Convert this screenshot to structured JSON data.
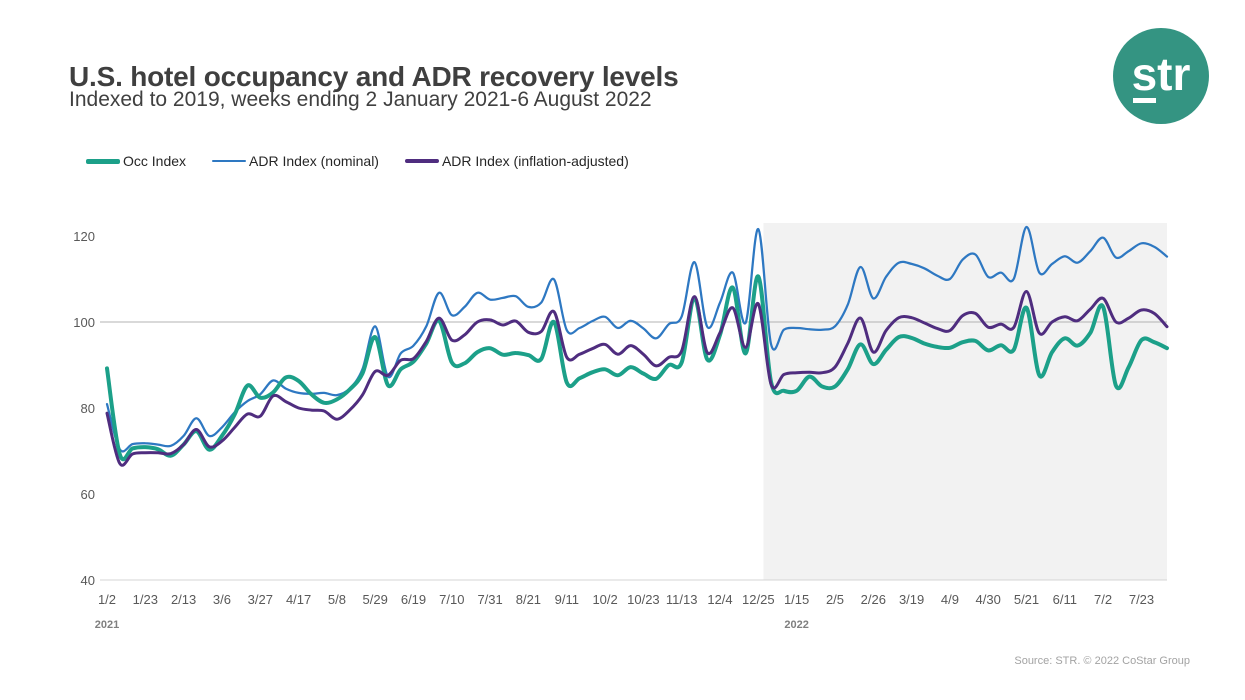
{
  "header": {
    "title": "U.S. hotel occupancy and ADR recovery levels",
    "subtitle": "Indexed to 2019, weeks ending 2 January 2021-6 August 2022"
  },
  "logo": {
    "text": "str",
    "color": "#349482"
  },
  "legend": {
    "items": [
      {
        "label": "Occ Index",
        "color": "#1CA089",
        "thickness": 5
      },
      {
        "label": "ADR Index (nominal)",
        "color": "#2E78C2",
        "thickness": 2.5
      },
      {
        "label": "ADR Index (inflation-adjusted)",
        "color": "#4F2D7F",
        "thickness": 3.5
      }
    ]
  },
  "axis": {
    "years": [
      "2021",
      "2022"
    ]
  },
  "source": "Source: STR. © 2022 CoStar Group",
  "chart_data": {
    "type": "line",
    "title": "U.S. hotel occupancy and ADR recovery levels",
    "subtitle": "Indexed to 2019, weeks ending 2 January 2021-6 August 2022",
    "x_unit": "week ending",
    "x_labels": [
      "1/2",
      "1/23",
      "2/13",
      "3/6",
      "3/27",
      "4/17",
      "5/8",
      "5/29",
      "6/19",
      "7/10",
      "7/31",
      "8/21",
      "9/11",
      "10/2",
      "10/23",
      "11/13",
      "12/4",
      "12/25",
      "1/15",
      "2/5",
      "2/26",
      "3/19",
      "4/9",
      "4/30",
      "5/21",
      "6/11",
      "7/2",
      "7/23"
    ],
    "label_every_n_weeks": 3,
    "n_points": 84,
    "y_ticks": [
      120,
      100,
      80,
      60,
      40
    ],
    "ylim": [
      40,
      125
    ],
    "reference_line": 100,
    "grid": "reference line at 100 only",
    "legend_position": "top-left",
    "shaded_region": {
      "from_index": 51.4,
      "to_index": 83,
      "color": "#f2f2f2",
      "meaning": "2022 weeks"
    },
    "series": [
      {
        "name": "Occ Index",
        "color": "#1CA089",
        "width": 4,
        "values": [
          89.2,
          69.2,
          70.6,
          70.9,
          70.4,
          68.9,
          71.5,
          74.6,
          70.3,
          73.5,
          78.5,
          85.2,
          82.4,
          83.6,
          87.1,
          86.3,
          83.2,
          81.2,
          82.0,
          84.3,
          88.0,
          96.5,
          85.3,
          89.0,
          90.8,
          95.0,
          100.3,
          90.6,
          90.4,
          93.0,
          93.9,
          92.4,
          92.8,
          92.3,
          91.4,
          100.0,
          85.9,
          86.9,
          88.3,
          89.0,
          87.6,
          89.5,
          88.0,
          86.8,
          90.0,
          90.6,
          105.5,
          91.3,
          97.0,
          108.0,
          92.7,
          110.6,
          86.0,
          84.0,
          84.0,
          87.3,
          85.0,
          85.0,
          89.0,
          94.8,
          90.2,
          93.5,
          96.5,
          96.3,
          95.0,
          94.2,
          94.0,
          95.3,
          95.6,
          93.4,
          94.6,
          93.5,
          103.3,
          87.6,
          93.0,
          96.2,
          94.5,
          97.5,
          103.5,
          85.2,
          89.5,
          95.8,
          95.3,
          93.9
        ]
      },
      {
        "name": "ADR Index (nominal)",
        "color": "#2E78C2",
        "width": 2.25,
        "values": [
          80.9,
          70.4,
          71.6,
          71.8,
          71.5,
          71.2,
          73.5,
          77.6,
          73.5,
          75.5,
          79.0,
          81.6,
          83.2,
          86.4,
          84.5,
          83.5,
          83.3,
          83.5,
          83.0,
          84.5,
          89.0,
          99.0,
          87.3,
          92.7,
          94.5,
          99.0,
          106.8,
          101.6,
          103.5,
          106.8,
          105.2,
          105.6,
          106.0,
          103.5,
          104.5,
          109.9,
          98.1,
          98.6,
          100.2,
          101.2,
          98.6,
          100.3,
          98.5,
          96.2,
          99.5,
          101.3,
          113.9,
          98.9,
          104.5,
          111.5,
          99.8,
          121.6,
          94.8,
          98.2,
          98.6,
          98.3,
          98.2,
          99.0,
          104.0,
          112.8,
          105.5,
          110.5,
          113.8,
          113.5,
          112.5,
          110.8,
          110.0,
          114.5,
          115.7,
          110.5,
          111.5,
          110.0,
          122.1,
          111.5,
          113.5,
          115.3,
          113.8,
          116.5,
          119.6,
          115.0,
          116.5,
          118.3,
          117.5,
          115.2
        ]
      },
      {
        "name": "ADR Index (inflation-adjusted)",
        "color": "#4F2D7F",
        "width": 3,
        "values": [
          78.8,
          67.1,
          69.3,
          69.6,
          69.6,
          69.4,
          71.5,
          75.0,
          71.0,
          72.3,
          75.5,
          78.6,
          78.1,
          82.8,
          81.5,
          80.0,
          79.5,
          79.3,
          77.4,
          79.5,
          83.0,
          88.5,
          87.6,
          91.1,
          91.5,
          95.5,
          100.9,
          95.8,
          97.0,
          100.0,
          100.5,
          99.3,
          100.2,
          97.6,
          97.8,
          102.4,
          91.8,
          92.5,
          93.8,
          94.8,
          92.5,
          94.5,
          92.5,
          89.8,
          91.8,
          93.3,
          105.9,
          92.9,
          97.5,
          103.3,
          94.1,
          104.2,
          85.5,
          87.8,
          88.2,
          88.3,
          88.2,
          89.5,
          95.0,
          100.9,
          93.0,
          98.0,
          101.0,
          101.0,
          99.8,
          98.5,
          98.0,
          101.5,
          102.0,
          98.8,
          99.5,
          98.7,
          107.1,
          97.4,
          100.0,
          101.2,
          100.3,
          103.0,
          105.5,
          100.0,
          100.9,
          102.8,
          102.0,
          98.9
        ]
      }
    ]
  }
}
